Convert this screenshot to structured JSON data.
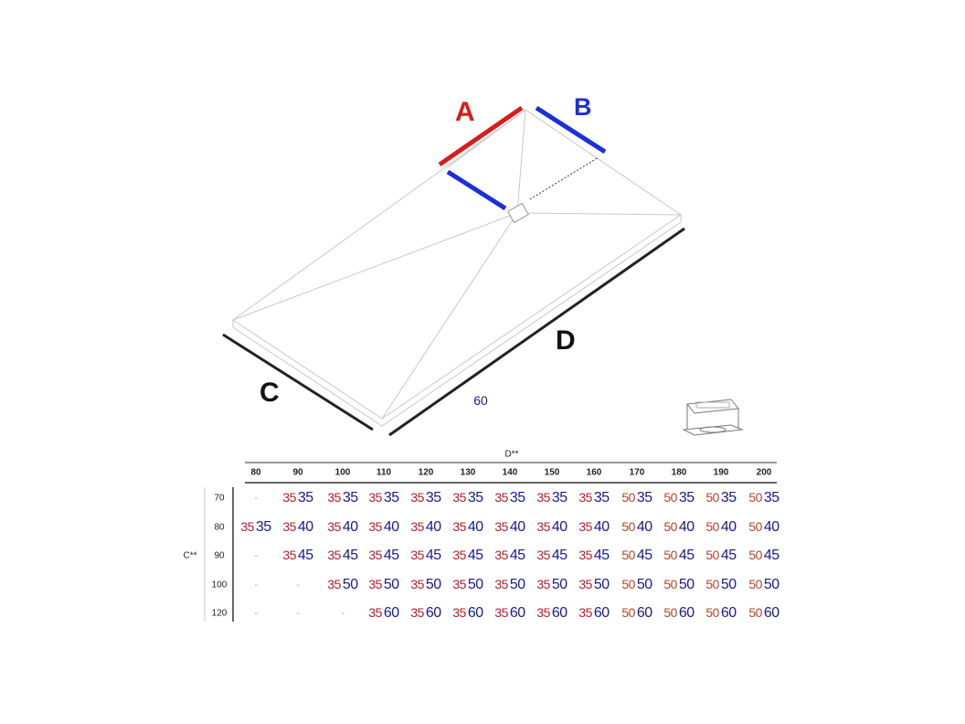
{
  "diagram": {
    "labels": {
      "a": "A",
      "b": "B",
      "c": "C",
      "d": "D",
      "width_value": "60"
    },
    "colors": {
      "a": "#d81c1c",
      "b": "#1c2fd8",
      "red_value": "#b01c2a",
      "orange_value": "#b4442a",
      "blue_value": "#1a1a8c"
    },
    "inset_icon": "drain-grate-icon"
  },
  "table": {
    "column_header": "D**",
    "row_header": "C**",
    "columns": [
      "80",
      "90",
      "100",
      "110",
      "120",
      "130",
      "140",
      "150",
      "160",
      "170",
      "180",
      "190",
      "200"
    ],
    "rows": [
      {
        "c": "70",
        "cells": [
          "-",
          [
            "35",
            "35"
          ],
          [
            "35",
            "35"
          ],
          [
            "35",
            "35"
          ],
          [
            "35",
            "35"
          ],
          [
            "35",
            "35"
          ],
          [
            "35",
            "35"
          ],
          [
            "35",
            "35"
          ],
          [
            "35",
            "35"
          ],
          [
            "50",
            "35"
          ],
          [
            "50",
            "35"
          ],
          [
            "50",
            "35"
          ],
          [
            "50",
            "35"
          ]
        ]
      },
      {
        "c": "80",
        "cells": [
          [
            "35",
            "35"
          ],
          [
            "35",
            "40"
          ],
          [
            "35",
            "40"
          ],
          [
            "35",
            "40"
          ],
          [
            "35",
            "40"
          ],
          [
            "35",
            "40"
          ],
          [
            "35",
            "40"
          ],
          [
            "35",
            "40"
          ],
          [
            "35",
            "40"
          ],
          [
            "50",
            "40"
          ],
          [
            "50",
            "40"
          ],
          [
            "50",
            "40"
          ],
          [
            "50",
            "40"
          ]
        ]
      },
      {
        "c": "90",
        "cells": [
          "-",
          [
            "35",
            "45"
          ],
          [
            "35",
            "45"
          ],
          [
            "35",
            "45"
          ],
          [
            "35",
            "45"
          ],
          [
            "35",
            "45"
          ],
          [
            "35",
            "45"
          ],
          [
            "35",
            "45"
          ],
          [
            "35",
            "45"
          ],
          [
            "50",
            "45"
          ],
          [
            "50",
            "45"
          ],
          [
            "50",
            "45"
          ],
          [
            "50",
            "45"
          ]
        ]
      },
      {
        "c": "100",
        "cells": [
          "-",
          "-",
          [
            "35",
            "50"
          ],
          [
            "35",
            "50"
          ],
          [
            "35",
            "50"
          ],
          [
            "35",
            "50"
          ],
          [
            "35",
            "50"
          ],
          [
            "35",
            "50"
          ],
          [
            "35",
            "50"
          ],
          [
            "50",
            "50"
          ],
          [
            "50",
            "50"
          ],
          [
            "50",
            "50"
          ],
          [
            "50",
            "50"
          ]
        ]
      },
      {
        "c": "120",
        "cells": [
          "-",
          "-",
          "-",
          [
            "35",
            "60"
          ],
          [
            "35",
            "60"
          ],
          [
            "35",
            "60"
          ],
          [
            "35",
            "60"
          ],
          [
            "35",
            "60"
          ],
          [
            "35",
            "60"
          ],
          [
            "50",
            "60"
          ],
          [
            "50",
            "60"
          ],
          [
            "50",
            "60"
          ],
          [
            "50",
            "60"
          ]
        ]
      }
    ]
  }
}
